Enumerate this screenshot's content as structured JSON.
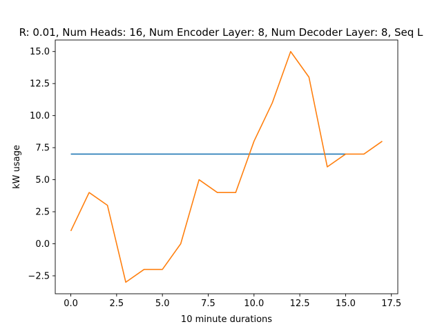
{
  "chart_data": {
    "type": "line",
    "title": "R: 0.01, Num Heads: 16, Num Encoder Layer: 8, Num Decoder Layer: 8, Seq L",
    "xlabel": "10 minute durations",
    "ylabel": "kW usage",
    "xlim": [
      -0.85,
      17.85
    ],
    "ylim": [
      -3.9,
      15.9
    ],
    "xticks": [
      0.0,
      2.5,
      5.0,
      7.5,
      10.0,
      12.5,
      15.0,
      17.5
    ],
    "xtick_labels": [
      "0.0",
      "2.5",
      "5.0",
      "7.5",
      "10.0",
      "12.5",
      "15.0",
      "17.5"
    ],
    "yticks": [
      -2.5,
      0.0,
      2.5,
      5.0,
      7.5,
      10.0,
      12.5,
      15.0
    ],
    "ytick_labels": [
      "−2.5",
      "0.0",
      "2.5",
      "5.0",
      "7.5",
      "10.0",
      "12.5",
      "15.0"
    ],
    "grid": false,
    "series": [
      {
        "color": "#1f77b4",
        "x": [
          0,
          1,
          2,
          3,
          4,
          5,
          6,
          7,
          8,
          9,
          10,
          11,
          12,
          13,
          14,
          15
        ],
        "y": [
          7,
          7,
          7,
          7,
          7,
          7,
          7,
          7,
          7,
          7,
          7,
          7,
          7,
          7,
          7,
          7
        ]
      },
      {
        "color": "#ff7f0e",
        "x": [
          0,
          1,
          2,
          3,
          4,
          5,
          6,
          7,
          8,
          9,
          10,
          11,
          12,
          13,
          14,
          15,
          16,
          17
        ],
        "y": [
          1,
          4,
          3,
          -3,
          -2,
          -2,
          0,
          5,
          4,
          4,
          8,
          11,
          15,
          13,
          6,
          7,
          7,
          8
        ]
      }
    ]
  }
}
